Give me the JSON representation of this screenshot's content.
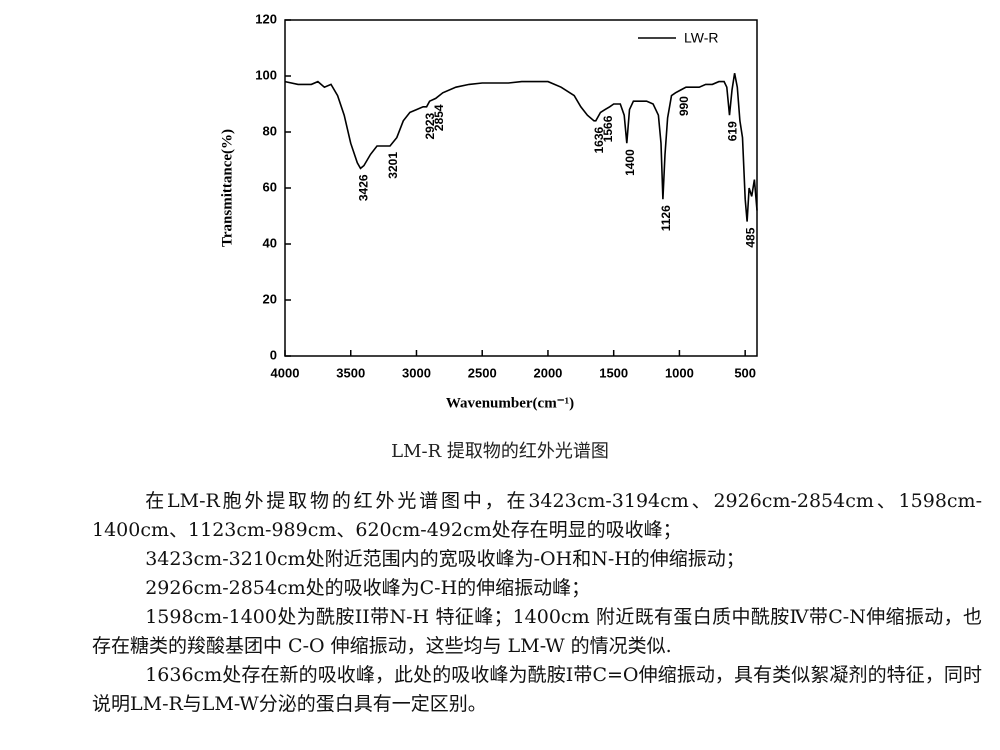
{
  "chart_data": {
    "type": "line",
    "x_label": "Wavenumber(cm⁻¹)",
    "y_label": "Transmittance(%)",
    "x": [
      4000,
      3900,
      3800,
      3750,
      3700,
      3650,
      3600,
      3550,
      3500,
      3450,
      3426,
      3400,
      3350,
      3300,
      3250,
      3201,
      3150,
      3100,
      3050,
      3000,
      2950,
      2923,
      2900,
      2854,
      2800,
      2700,
      2600,
      2500,
      2400,
      2300,
      2200,
      2100,
      2000,
      1900,
      1800,
      1750,
      1700,
      1650,
      1636,
      1600,
      1566,
      1530,
      1500,
      1450,
      1420,
      1400,
      1380,
      1350,
      1300,
      1250,
      1200,
      1160,
      1140,
      1126,
      1110,
      1090,
      1060,
      1030,
      990,
      950,
      900,
      850,
      800,
      750,
      700,
      660,
      640,
      619,
      600,
      580,
      560,
      540,
      520,
      500,
      485,
      470,
      450,
      430,
      410
    ],
    "series": [
      {
        "name": "LW-R",
        "color": "#000000",
        "values": [
          98,
          97,
          97,
          98,
          96,
          97,
          93,
          86,
          76,
          69,
          67,
          68,
          72,
          75,
          75,
          75,
          78,
          84,
          87,
          88,
          89,
          89,
          91,
          92,
          94,
          96,
          97,
          97.5,
          97.5,
          97.5,
          98,
          98,
          98,
          96,
          93,
          89,
          86,
          84,
          84,
          87,
          88,
          89,
          90,
          90,
          86,
          76,
          88,
          91,
          91,
          91,
          90,
          86,
          76,
          56,
          72,
          85,
          93,
          94,
          95,
          96,
          96,
          96,
          97,
          97,
          98,
          98,
          96,
          86,
          95,
          101,
          96,
          84,
          78,
          56,
          48,
          60,
          57,
          63,
          52
        ]
      }
    ],
    "annotations": [
      3426,
      3201,
      2923,
      2854,
      1636,
      1566,
      1400,
      1126,
      990,
      619,
      485
    ],
    "xlim": [
      4000,
      410
    ],
    "ylim": [
      0,
      120
    ],
    "xticks": [
      4000,
      3500,
      3000,
      2500,
      2000,
      1500,
      1000,
      500
    ],
    "yticks": [
      0,
      20,
      40,
      60,
      80,
      100,
      120
    ],
    "legend": "upper right"
  },
  "caption": "LM-R 提取物的红外光谱图",
  "paragraphs": [
    "在LM-R胞外提取物的红外光谱图中，在3423cm-3194cm、2926cm-2854cm、1598cm-1400cm、1123cm-989cm、620cm-492cm处存在明显的吸收峰；",
    "3423cm-3210cm处附近范围内的宽吸收峰为-OH和N-H的伸缩振动；",
    "2926cm-2854cm处的吸收峰为C-H的伸缩振动峰；",
    "1598cm-1400处为酰胺II带N-H 特征峰；1400cm 附近既有蛋白质中酰胺Ⅳ带C-N伸缩振动，也存在糖类的羧酸基团中 C-O 伸缩振动，这些均与 LM-W 的情况类似.",
    "1636cm处存在新的吸收峰，此处的吸收峰为酰胺I带C=O伸缩振动，具有类似絮凝剂的特征，同时说明LM-R与LM-W分泌的蛋白具有一定区别。"
  ]
}
